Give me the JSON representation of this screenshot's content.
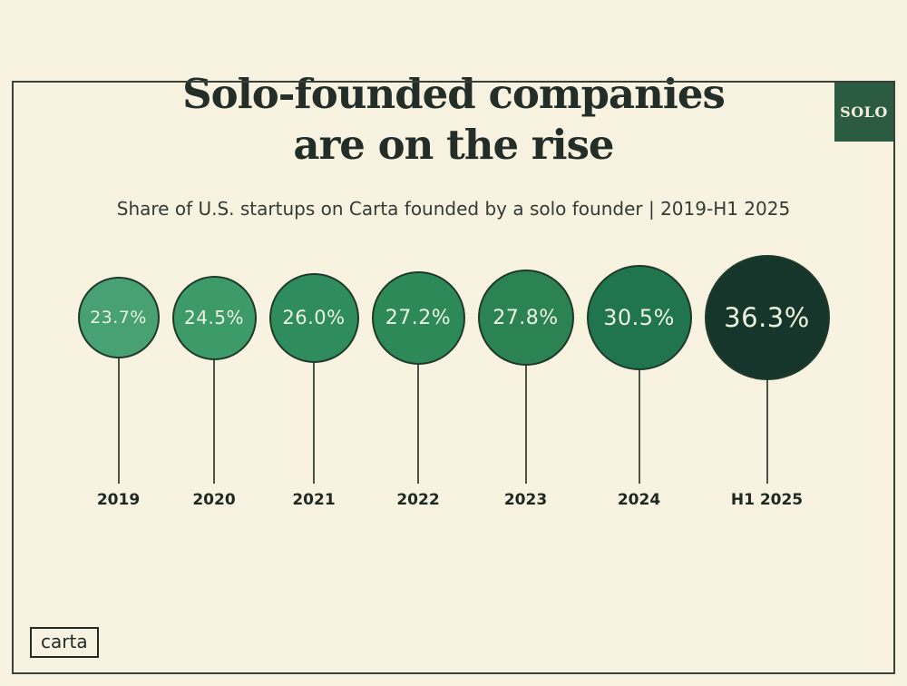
{
  "page": {
    "background_color": "#f8f2e1",
    "border_color": "#37413a"
  },
  "header": {
    "badge_label": "SOLO",
    "badge_bg_color": "#2b5b41",
    "badge_text_color": "#f2eeda",
    "title_line1": "Solo-founded companies",
    "title_line2": "are on the rise",
    "title_color": "#222e27",
    "subtitle": "Share of U.S. startups on Carta founded by a solo founder | 2019-H1 2025",
    "subtitle_color": "#333b35"
  },
  "footer": {
    "logo_label": "carta"
  },
  "chart_data": {
    "type": "bubble",
    "variant": "lollipop-bubble-chart",
    "title": "Solo-founded companies are on the rise",
    "subtitle": "Share of U.S. startups on Carta founded by a solo founder | 2019-H1 2025",
    "categories": [
      "2019",
      "2020",
      "2021",
      "2022",
      "2023",
      "2024",
      "H1 2025"
    ],
    "values": [
      23.7,
      24.5,
      26.0,
      27.2,
      27.8,
      30.5,
      36.3
    ],
    "value_labels": [
      "23.7%",
      "24.5%",
      "26.0%",
      "27.2%",
      "27.8%",
      "30.5%",
      "36.3%"
    ],
    "unit": "percent",
    "bubble_colors": [
      "#48a172",
      "#3d9b69",
      "#2f8d5d",
      "#2d8a58",
      "#2b8253",
      "#20744e",
      "#17362b"
    ],
    "bubble_stroke_color": "#1f3a2a",
    "value_text_color": "#ecf4de",
    "stem_color": "#4a524a",
    "year_label_color": "#1d2921",
    "sizing": "bubble radius proportional to value",
    "legend": "none",
    "axes": "none",
    "grid": "off"
  }
}
